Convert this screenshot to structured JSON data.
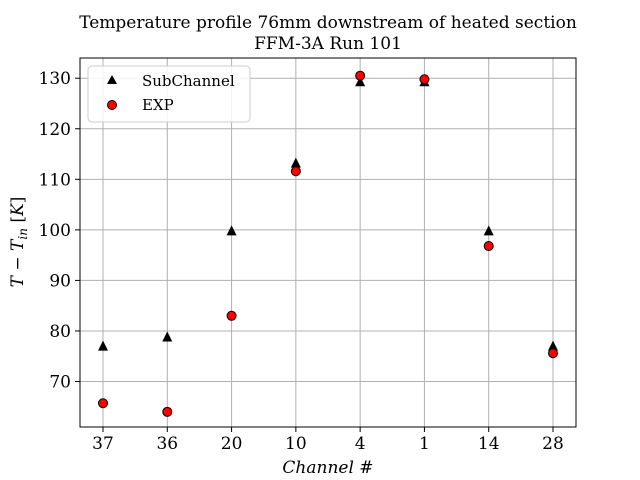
{
  "chart_data": {
    "type": "scatter",
    "title": "Temperature profile 76mm downstream of heated section",
    "subtitle": "FFM-3A Run 101",
    "xlabel": "Channel #",
    "ylabel": "T − T",
    "ylabel_sub": "in",
    "ylabel_unit": "[K]",
    "categories": [
      "37",
      "36",
      "20",
      "10",
      "4",
      "1",
      "14",
      "28"
    ],
    "ylim": [
      61,
      134
    ],
    "yticks": [
      70,
      80,
      90,
      100,
      110,
      120,
      130
    ],
    "grid": true,
    "legend_position": "top-left",
    "series": [
      {
        "name": "SubChannel",
        "marker": "triangle",
        "color": "#000000",
        "values": [
          77.0,
          78.8,
          99.8,
          113.2,
          129.3,
          129.3,
          99.8,
          77.0
        ]
      },
      {
        "name": "EXP",
        "marker": "circle",
        "color": "#ff0000",
        "values": [
          65.7,
          64.0,
          83.0,
          111.6,
          130.5,
          129.8,
          96.8,
          75.6
        ]
      }
    ]
  }
}
